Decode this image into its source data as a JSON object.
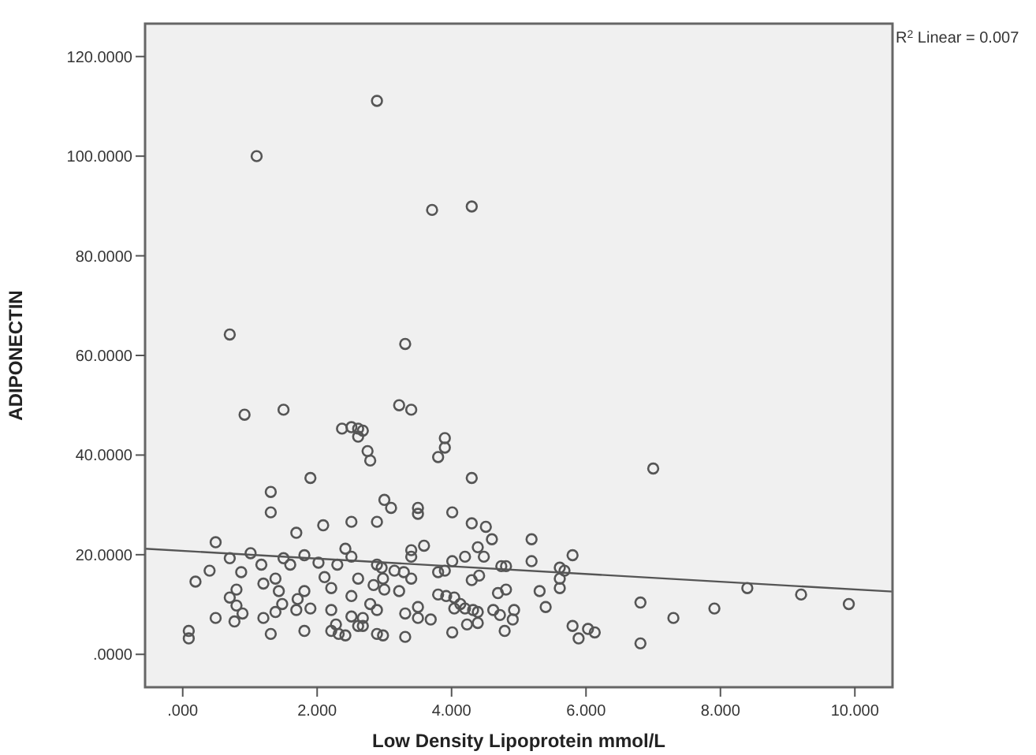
{
  "chart_data": {
    "type": "scatter",
    "xlabel": "Low Density Lipoprotein  mmol/L",
    "ylabel": "ADIPONECTIN",
    "annotations": [
      "R$^{2}$ Linear = 0.007"
    ],
    "xlim": [
      -0.56,
      10.56
    ],
    "ylim": [
      -6.6,
      126.6
    ],
    "xticks": [
      {
        "value": 0,
        "label": ".000"
      },
      {
        "value": 2,
        "label": "2.000"
      },
      {
        "value": 4,
        "label": "4.000"
      },
      {
        "value": 6,
        "label": "6.000"
      },
      {
        "value": 8,
        "label": "8.000"
      },
      {
        "value": 10,
        "label": "10.000"
      }
    ],
    "yticks": [
      {
        "value": 0,
        "label": ".0000"
      },
      {
        "value": 20,
        "label": "20.0000"
      },
      {
        "value": 40,
        "label": "40.0000"
      },
      {
        "value": 60,
        "label": "60.0000"
      },
      {
        "value": 80,
        "label": "80.0000"
      },
      {
        "value": 100,
        "label": "100.0000"
      },
      {
        "value": 120,
        "label": "120.0000"
      }
    ],
    "grid": false,
    "series": [
      {
        "color": "#555555",
        "marker": "circle",
        "x": [
          2.89,
          1.1,
          3.71,
          4.3,
          0.7,
          3.31,
          0.92,
          1.5,
          2.37,
          2.51,
          2.61,
          2.61,
          1.9,
          1.31,
          1.31,
          1.69,
          2.09,
          2.51,
          0.49,
          0.19,
          0.4,
          0.09,
          0.09,
          0.49,
          0.7,
          1.01,
          1.17,
          0.87,
          0.8,
          0.7,
          0.8,
          0.77,
          0.89,
          1.2,
          1.2,
          1.31,
          1.38,
          1.43,
          1.48,
          1.38,
          1.5,
          1.6,
          1.81,
          1.71,
          1.81,
          1.69,
          1.81,
          2.02,
          1.9,
          2.11,
          2.21,
          2.28,
          2.21,
          2.32,
          2.42,
          2.21,
          2.3,
          2.42,
          2.51,
          2.61,
          2.51,
          2.51,
          2.61,
          3.4,
          3.22,
          2.68,
          2.75,
          2.79,
          3.9,
          3.9,
          3.8,
          4.3,
          3.0,
          3.1,
          3.5,
          3.5,
          2.89,
          4.01,
          4.3,
          4.51,
          4.6,
          4.39,
          4.48,
          5.19,
          5.8,
          5.19,
          3.59,
          3.4,
          3.4,
          4.01,
          4.2,
          4.74,
          4.81,
          5.61,
          5.68,
          5.61,
          5.61,
          3.8,
          3.9,
          4.3,
          4.41,
          3.4,
          3.15,
          3.29,
          2.98,
          2.84,
          3.22,
          3.0,
          3.8,
          3.92,
          4.04,
          4.13,
          4.04,
          4.2,
          4.32,
          4.39,
          4.69,
          4.81,
          5.31,
          5.4,
          4.62,
          4.72,
          4.93,
          4.91,
          3.31,
          3.5,
          3.69,
          3.5,
          2.79,
          2.89,
          2.68,
          2.68,
          2.98,
          3.31,
          2.89,
          4.01,
          4.23,
          4.39,
          4.79,
          5.8,
          6.03,
          6.13,
          5.89,
          6.81,
          6.81,
          7.0,
          7.3,
          7.91,
          8.4,
          9.2,
          9.91,
          2.89,
          2.96
        ],
        "values": [
          111.1,
          100.0,
          89.2,
          89.9,
          64.2,
          62.3,
          48.1,
          49.1,
          45.3,
          45.6,
          45.3,
          43.7,
          35.4,
          32.6,
          28.5,
          24.4,
          25.9,
          26.6,
          22.5,
          14.6,
          16.8,
          4.7,
          3.2,
          7.3,
          19.3,
          20.3,
          18.0,
          16.5,
          13.0,
          11.4,
          9.8,
          6.6,
          8.2,
          14.2,
          7.3,
          4.1,
          15.2,
          12.7,
          10.1,
          8.5,
          19.3,
          18.0,
          19.9,
          11.1,
          12.7,
          8.9,
          4.7,
          18.4,
          9.2,
          15.5,
          8.9,
          6.0,
          4.7,
          4.1,
          3.8,
          13.3,
          18.0,
          21.2,
          19.6,
          15.2,
          11.7,
          7.6,
          5.7,
          49.1,
          50.0,
          44.9,
          40.8,
          38.9,
          43.4,
          41.5,
          39.6,
          35.4,
          31.0,
          29.4,
          29.4,
          28.2,
          26.6,
          28.5,
          26.3,
          25.6,
          23.1,
          21.5,
          19.6,
          23.1,
          19.9,
          18.7,
          21.8,
          20.9,
          19.6,
          18.7,
          19.6,
          17.7,
          17.7,
          17.4,
          16.8,
          15.2,
          13.3,
          16.5,
          16.8,
          14.9,
          15.8,
          15.2,
          16.8,
          16.5,
          15.2,
          13.9,
          12.7,
          13.0,
          12.0,
          11.7,
          11.4,
          10.1,
          9.2,
          9.2,
          8.9,
          8.5,
          12.3,
          13.0,
          12.7,
          9.5,
          8.9,
          7.9,
          8.9,
          7.0,
          8.2,
          7.3,
          7.0,
          9.5,
          10.1,
          8.9,
          7.3,
          5.7,
          3.8,
          3.5,
          4.1,
          4.4,
          6.0,
          6.3,
          4.7,
          5.7,
          5.1,
          4.4,
          3.2,
          10.4,
          2.2,
          37.3,
          7.3,
          9.2,
          13.3,
          12.0,
          10.1,
          18.0,
          17.4
        ]
      },
      {
        "type": "line",
        "color": "#555555",
        "marker": "none",
        "line_style": "solid",
        "x": [
          -0.56,
          10.56
        ],
        "values": [
          21.2,
          12.6
        ]
      }
    ]
  }
}
